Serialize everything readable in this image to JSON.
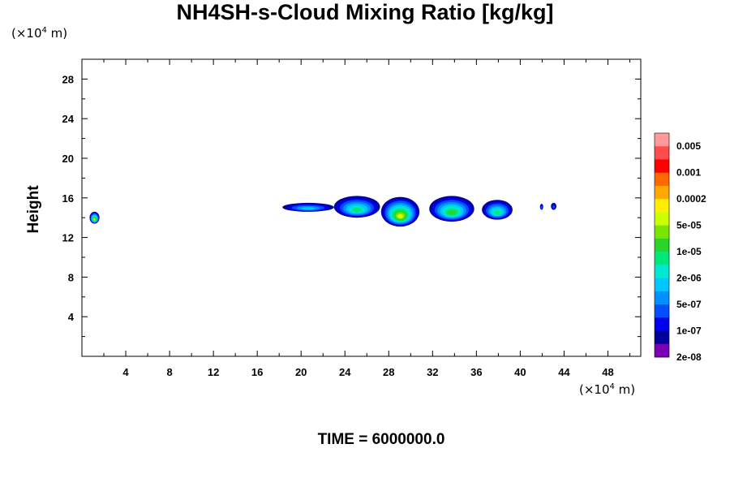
{
  "chart_data": {
    "type": "heatmap",
    "title": "NH4SH-s-Cloud Mixing Ratio [kg/kg]",
    "xlabel": "",
    "ylabel": "Height",
    "x_unit": {
      "prefix": "(×10",
      "exp": "4",
      "suffix": " m)"
    },
    "y_unit": {
      "prefix": "(×10",
      "exp": "4",
      "suffix": " m)"
    },
    "xlim": [
      0,
      51
    ],
    "ylim": [
      0,
      30
    ],
    "xticks": [
      4,
      8,
      12,
      16,
      20,
      24,
      28,
      32,
      36,
      40,
      44,
      48
    ],
    "yticks": [
      4,
      8,
      12,
      16,
      20,
      24,
      28
    ],
    "footer": "TIME = 6000000.0",
    "colorbar": {
      "labels": [
        "0.005",
        "0.001",
        "0.0002",
        "5e-05",
        "1e-05",
        "2e-06",
        "5e-07",
        "1e-07",
        "2e-08"
      ],
      "colors": [
        "#ff9a9a",
        "#ff4c4c",
        "#ff0000",
        "#ff6a00",
        "#ffaa00",
        "#ffee00",
        "#ccff00",
        "#7ae600",
        "#2ad42a",
        "#00e87a",
        "#00e8d0",
        "#00c8ff",
        "#0090ff",
        "#0050ff",
        "#0000ee",
        "#00009a",
        "#7a00b4"
      ]
    },
    "cloud_regions": [
      {
        "x": [
          18.3,
          23.0
        ],
        "y": [
          14.6,
          15.5
        ],
        "peak": "5e-07"
      },
      {
        "x": [
          23.0,
          27.2
        ],
        "y": [
          14.0,
          16.2
        ],
        "peak": "2e-06"
      },
      {
        "x": [
          27.3,
          30.8
        ],
        "y": [
          13.1,
          16.1
        ],
        "peak": "5e-05"
      },
      {
        "x": [
          31.7,
          35.8
        ],
        "y": [
          13.6,
          16.2
        ],
        "peak": "1e-05"
      },
      {
        "x": [
          36.5,
          39.3
        ],
        "y": [
          13.8,
          15.8
        ],
        "peak": "2e-06"
      },
      {
        "x": [
          41.8,
          42.1
        ],
        "y": [
          14.8,
          15.4
        ],
        "peak": "1e-07"
      },
      {
        "x": [
          42.8,
          43.3
        ],
        "y": [
          14.8,
          15.5
        ],
        "peak": "1e-07"
      },
      {
        "x": [
          0.7,
          1.6
        ],
        "y": [
          13.4,
          14.6
        ],
        "peak": "5e-05"
      }
    ]
  }
}
